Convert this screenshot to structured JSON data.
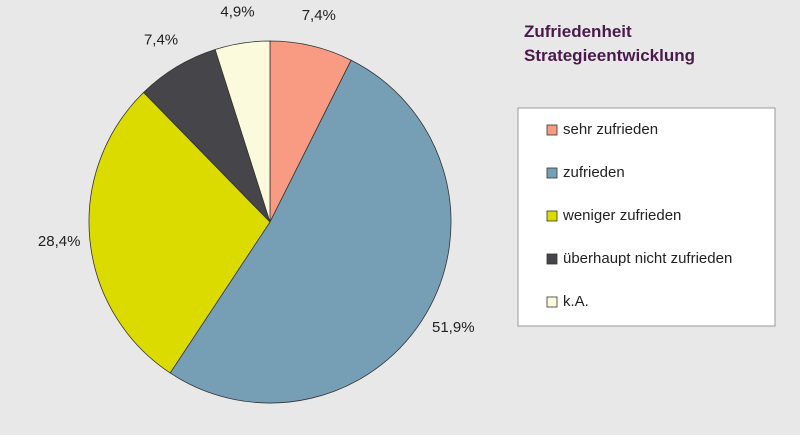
{
  "chart_data": {
    "type": "pie",
    "title": "Zufriedenheit Strategieentwicklung",
    "categories": [
      "sehr zufrieden",
      "zufrieden",
      "weniger zufrieden",
      "überhaupt nicht zufrieden",
      "k.A."
    ],
    "values": [
      7.4,
      51.9,
      28.4,
      7.4,
      4.9
    ],
    "value_labels": [
      "7,4%",
      "51,9%",
      "28,4%",
      "7,4%",
      "4,9%"
    ],
    "colors": [
      "#f99a82",
      "#769fb6",
      "#dcdb00",
      "#46464a",
      "#fcfadc"
    ],
    "legend": "right"
  }
}
